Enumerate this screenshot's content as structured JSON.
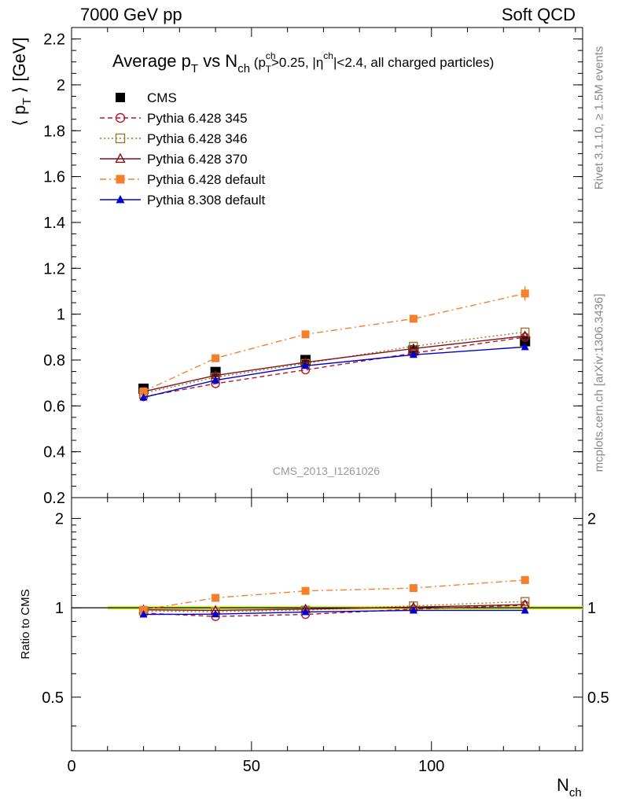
{
  "header": {
    "left": "7000 GeV pp",
    "right": "Soft QCD"
  },
  "side": {
    "top": "Rivet 3.1.10, ≥ 1.5M events",
    "bottom": "mcplots.cern.ch [arXiv:1306.3436]"
  },
  "chart_data": [
    {
      "type": "line",
      "panel": "main",
      "title": {
        "prefix": "Average p",
        "sub1": "T",
        "mid": " vs N",
        "sub2": "ch",
        "cuts": "(p",
        "cuts_sup": "ch",
        "cuts_sub": "T",
        "cuts_mid": ">0.25, |η",
        "cuts_sup2": "ch",
        "cuts_end": "|<2.4, all charged particles)"
      },
      "ylabel": {
        "pre": "⟨ p",
        "sub": "T",
        "post": " ⟩ [GeV]"
      },
      "xlabel": {
        "main": "N",
        "sub": "ch"
      },
      "xlim": [
        0,
        142
      ],
      "ylim": [
        0.2,
        2.25
      ],
      "yticks": [
        "0.2",
        "0.4",
        "0.6",
        "0.8",
        "1",
        "1.2",
        "1.4",
        "1.6",
        "1.8",
        "2",
        "2.2"
      ],
      "ytick_values": [
        0.2,
        0.4,
        0.6,
        0.8,
        1,
        1.2,
        1.4,
        1.6,
        1.8,
        2,
        2.2
      ],
      "watermark": "CMS_2013_I1261026",
      "legend_position": "top-left",
      "x": [
        20,
        40,
        65,
        95,
        126
      ],
      "series": [
        {
          "name": "CMS",
          "values": [
            0.675,
            0.748,
            0.8,
            0.842,
            0.882
          ],
          "color": "#000000",
          "marker": "square-filled",
          "dash": "none",
          "line": false
        },
        {
          "name": "Pythia 6.428 345",
          "values": [
            0.64,
            0.697,
            0.757,
            0.83,
            0.9
          ],
          "color": "#b2182b",
          "marker": "circle-open",
          "dash": "6,4"
        },
        {
          "name": "Pythia 6.428 346",
          "values": [
            0.655,
            0.725,
            0.785,
            0.86,
            0.922
          ],
          "color": "#a0782a",
          "marker": "square-open",
          "dash": "2,3"
        },
        {
          "name": "Pythia 6.428 370",
          "values": [
            0.662,
            0.733,
            0.79,
            0.85,
            0.905
          ],
          "color": "#7f0f1e",
          "marker": "triangle-open",
          "dash": "none"
        },
        {
          "name": "Pythia 6.428 default",
          "values": [
            0.663,
            0.808,
            0.912,
            0.98,
            1.09
          ],
          "color": "#f57f2a",
          "marker": "square-filled",
          "dash": "8,4,2,4"
        },
        {
          "name": "Pythia 8.308 default",
          "values": [
            0.637,
            0.712,
            0.775,
            0.823,
            0.857
          ],
          "color": "#0000d0",
          "marker": "triangle-filled",
          "dash": "none"
        }
      ]
    },
    {
      "type": "line",
      "panel": "ratio",
      "ylabel": "Ratio to CMS",
      "xlim": [
        0,
        142
      ],
      "ylim": [
        0.33,
        2.35
      ],
      "yscale": "log",
      "yticks": [
        "0.5",
        "1",
        "2"
      ],
      "ytick_values": [
        0.5,
        1,
        2
      ],
      "xticks": [
        "0",
        "50",
        "100"
      ],
      "xtick_values": [
        0,
        50,
        100
      ],
      "band": {
        "x": [
          10,
          142
        ],
        "y": [
          0.985,
          1.015
        ],
        "color": "#d8f25a"
      },
      "x": [
        20,
        40,
        65,
        95,
        126
      ],
      "series": [
        {
          "name": "Pythia 6.428 345",
          "values": [
            0.96,
            0.935,
            0.95,
            0.99,
            1.02
          ]
        },
        {
          "name": "Pythia 6.428 346",
          "values": [
            0.975,
            0.97,
            0.982,
            1.015,
            1.05
          ]
        },
        {
          "name": "Pythia 6.428 370",
          "values": [
            0.985,
            0.98,
            0.99,
            1.005,
            1.025
          ]
        },
        {
          "name": "Pythia 6.428 default",
          "values": [
            0.985,
            1.08,
            1.14,
            1.165,
            1.24
          ]
        },
        {
          "name": "Pythia 8.308 default",
          "values": [
            0.95,
            0.952,
            0.968,
            0.98,
            0.98
          ]
        }
      ]
    }
  ]
}
